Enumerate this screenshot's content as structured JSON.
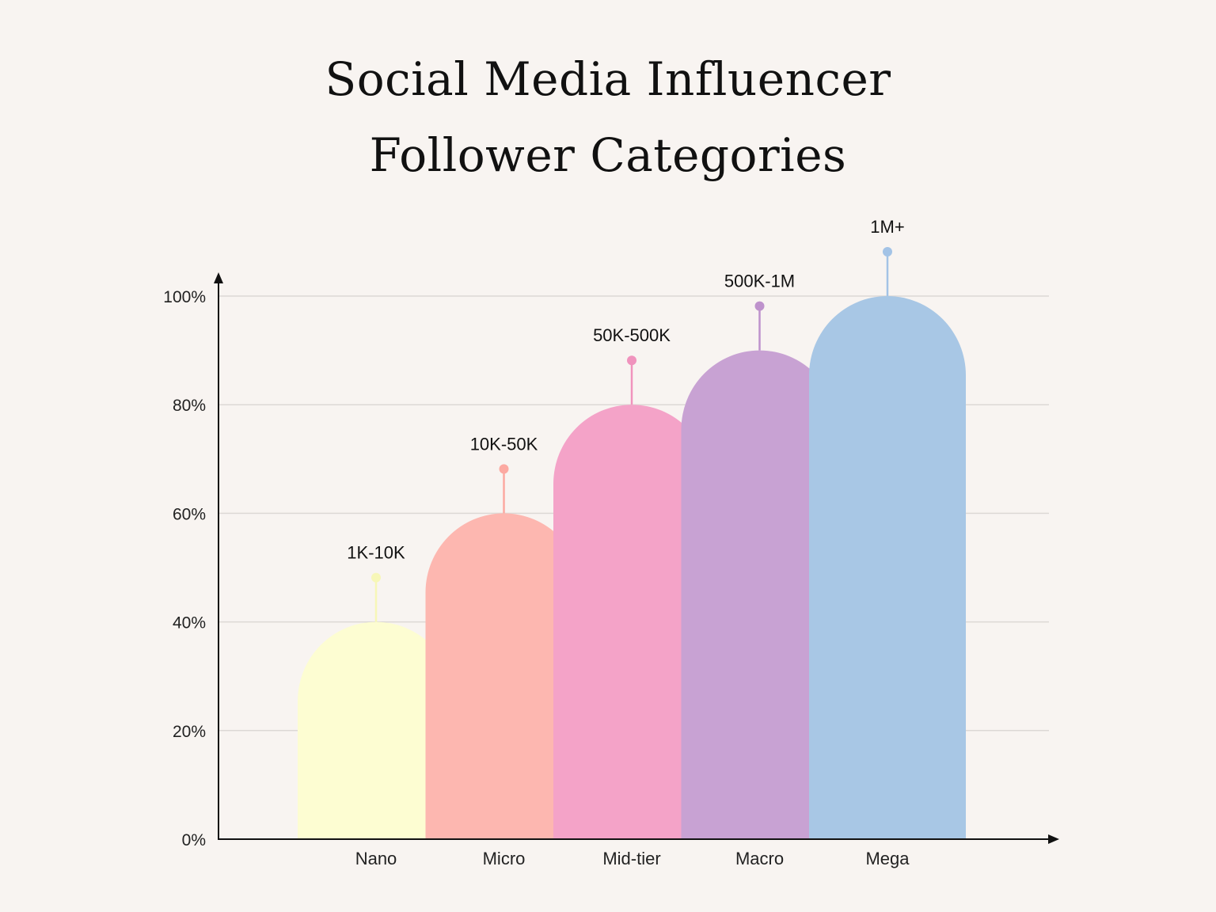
{
  "chart_data": {
    "type": "bar",
    "title_lines": [
      "Social Media Influencer",
      "Follower Categories"
    ],
    "categories": [
      "Nano",
      "Micro",
      "Mid-tier",
      "Macro",
      "Mega"
    ],
    "values": [
      40,
      60,
      80,
      90,
      100
    ],
    "data_labels": [
      "1K-10K",
      "10K-50K",
      "50K-500K",
      "500K-1M",
      "1M+"
    ],
    "colors": [
      "#fdfdd2",
      "#fdb7b0",
      "#f4a3c8",
      "#c8a2d3",
      "#a8c7e5"
    ],
    "marker_colors": [
      "#f7f7b8",
      "#fca9a1",
      "#f093bd",
      "#be92cc",
      "#a3c3e6"
    ],
    "y_ticks": [
      "0%",
      "20%",
      "40%",
      "60%",
      "80%",
      "100%"
    ],
    "ylim": [
      0,
      100
    ],
    "grid": true,
    "xlabel": "",
    "ylabel": ""
  }
}
